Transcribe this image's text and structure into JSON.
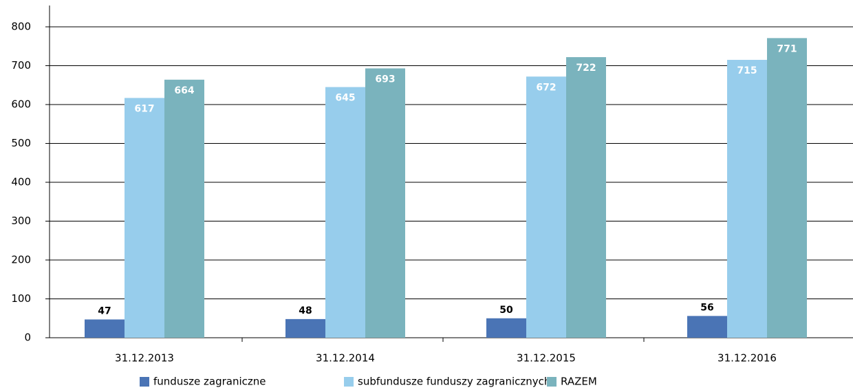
{
  "chart_data": {
    "type": "bar",
    "categories": [
      "31.12.2013",
      "31.12.2014",
      "31.12.2015",
      "31.12.2016"
    ],
    "series": [
      {
        "name": "fundusze zagraniczne",
        "color": "#4a74b5",
        "values": [
          47,
          48,
          50,
          56
        ]
      },
      {
        "name": "subfundusze funduszy zagranicznych",
        "color": "#97cdec",
        "values": [
          617,
          645,
          672,
          715
        ]
      },
      {
        "name": "RAZEM",
        "color": "#7ab3bd",
        "values": [
          664,
          693,
          722,
          771
        ]
      }
    ],
    "ylim": [
      0,
      800
    ],
    "yticks": [
      0,
      100,
      200,
      300,
      400,
      500,
      600,
      700,
      800
    ],
    "grid": true,
    "legend": "bottom"
  }
}
